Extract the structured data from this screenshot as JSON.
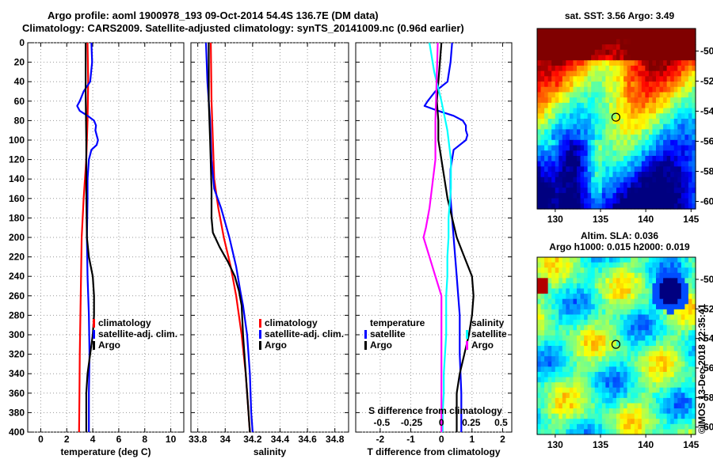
{
  "header": {
    "title_line1": "Argo profile: aoml 1900978_193 09-Oct-2014 54.4S 136.7E (DM data)",
    "title_line2": "Climatology: CARS2009. Satellite-adjusted climatology: synTS_20141009.nc (0.96d earlier)"
  },
  "colors": {
    "climatology": "#ff0000",
    "satellite": "#0000ff",
    "argo": "#000000",
    "t_sat": "#0000ff",
    "s_sat": "#00ffff",
    "s_argo": "#ff00ff"
  },
  "chart_data": [
    {
      "id": "temperature",
      "type": "line",
      "xlabel": "temperature (deg C)",
      "xlim": [
        -1,
        11
      ],
      "xticks": [
        "0",
        "2",
        "4",
        "6",
        "8",
        "10"
      ],
      "ylim": [
        400,
        0
      ],
      "yticks": [
        "0",
        "20",
        "40",
        "60",
        "80",
        "100",
        "120",
        "140",
        "160",
        "180",
        "200",
        "220",
        "240",
        "260",
        "280",
        "300",
        "320",
        "340",
        "360",
        "380",
        "400"
      ],
      "grid": true,
      "legend": [
        "climatology",
        "satellite-adj. clim.",
        "Argo"
      ],
      "series": [
        {
          "name": "climatology",
          "depth": [
            0,
            40,
            80,
            120,
            160,
            200,
            240,
            280,
            320,
            360,
            400
          ],
          "values": [
            3.6,
            3.65,
            3.6,
            3.5,
            3.3,
            3.15,
            3.1,
            3.05,
            3.0,
            2.98,
            2.95
          ]
        },
        {
          "name": "satellite-adj. clim.",
          "depth": [
            0,
            20,
            40,
            50,
            60,
            65,
            70,
            75,
            80,
            85,
            90,
            95,
            100,
            105,
            110,
            120,
            140,
            160,
            200,
            240,
            280,
            320,
            360,
            400
          ],
          "values": [
            3.9,
            3.95,
            3.8,
            3.3,
            3.0,
            2.8,
            3.0,
            3.6,
            4.1,
            4.25,
            4.2,
            4.3,
            4.4,
            4.3,
            3.9,
            3.7,
            3.6,
            3.6,
            3.55,
            3.6,
            3.7,
            3.75,
            3.7,
            3.7
          ]
        },
        {
          "name": "Argo",
          "depth": [
            0,
            50,
            100,
            150,
            200,
            220,
            240,
            260,
            280,
            300,
            320,
            340,
            360,
            380,
            400
          ],
          "values": [
            3.45,
            3.45,
            3.5,
            3.5,
            3.55,
            3.7,
            4.0,
            4.1,
            4.1,
            4.0,
            3.8,
            3.6,
            3.5,
            3.5,
            3.5
          ]
        }
      ]
    },
    {
      "id": "salinity",
      "type": "line",
      "xlabel": "salinity",
      "xlim": [
        33.75,
        34.9
      ],
      "xticks": [
        "33.8",
        "34",
        "34.2",
        "34.4",
        "34.6",
        "34.8"
      ],
      "ylim": [
        400,
        0
      ],
      "grid": true,
      "legend": [
        "climatology",
        "satellite-adj. clim.",
        "Argo"
      ],
      "series": [
        {
          "name": "climatology",
          "depth": [
            0,
            60,
            100,
            140,
            150,
            170,
            200,
            230,
            260,
            300,
            340,
            380,
            400
          ],
          "values": [
            33.895,
            33.9,
            33.91,
            33.92,
            33.93,
            33.95,
            33.99,
            34.04,
            34.08,
            34.12,
            34.15,
            34.17,
            34.18
          ]
        },
        {
          "name": "satellite-adj. clim.",
          "depth": [
            0,
            40,
            80,
            120,
            150,
            170,
            200,
            230,
            255,
            270,
            300,
            340,
            380,
            400
          ],
          "values": [
            33.86,
            33.87,
            33.89,
            33.9,
            33.92,
            33.97,
            34.03,
            34.08,
            34.11,
            34.13,
            34.16,
            34.18,
            34.19,
            34.2
          ]
        },
        {
          "name": "Argo",
          "depth": [
            0,
            60,
            100,
            150,
            180,
            195,
            210,
            225,
            240,
            255,
            270,
            300,
            340,
            380,
            400
          ],
          "values": [
            33.88,
            33.88,
            33.89,
            33.9,
            33.9,
            33.91,
            33.96,
            34.02,
            34.07,
            34.1,
            34.12,
            34.13,
            34.15,
            34.17,
            34.18
          ]
        }
      ]
    },
    {
      "id": "differences",
      "type": "line",
      "xlabel": "T difference from climatology",
      "xlabel_top": "S difference from climatology",
      "xlim": [
        -2.8,
        2.3
      ],
      "xticks": [
        "-2",
        "-1",
        "0",
        "1",
        "2"
      ],
      "xticks_top": [
        "-0.5",
        "-0.25",
        "0",
        "0.25",
        "0.5"
      ],
      "ylim": [
        400,
        0
      ],
      "grid": true,
      "legend_temperature_title": "temperature",
      "legend_salinity_title": "salinity",
      "legend_temperature": [
        "satellite",
        "Argo"
      ],
      "legend_salinity": [
        "satellite",
        "Argo"
      ],
      "series": [
        {
          "name": "T satellite",
          "depth": [
            0,
            20,
            40,
            50,
            60,
            65,
            70,
            75,
            80,
            85,
            90,
            95,
            100,
            110,
            130,
            160,
            200,
            240,
            280,
            320,
            360,
            400
          ],
          "values": [
            0.35,
            0.3,
            0.2,
            -0.2,
            -0.45,
            -0.55,
            -0.1,
            0.4,
            0.7,
            0.8,
            0.8,
            0.85,
            0.8,
            0.4,
            0.3,
            0.3,
            0.4,
            0.5,
            0.6,
            0.6,
            0.65,
            0.65
          ]
        },
        {
          "name": "T Argo",
          "depth": [
            0,
            60,
            80,
            100,
            120,
            160,
            200,
            220,
            240,
            260,
            280,
            300,
            320,
            340,
            360,
            380,
            400
          ],
          "values": [
            0.0,
            -0.15,
            -0.1,
            -0.1,
            0.0,
            0.2,
            0.5,
            0.75,
            1.0,
            1.05,
            1.0,
            0.9,
            0.75,
            0.6,
            0.5,
            0.5,
            0.5
          ]
        },
        {
          "name": "S satellite",
          "depth": [
            0,
            30,
            60,
            90,
            120,
            150,
            180,
            200,
            220,
            240,
            260,
            280,
            300,
            320,
            340,
            360,
            380,
            400
          ],
          "values": [
            -0.1,
            -0.06,
            0.0,
            0.05,
            0.08,
            0.08,
            0.06,
            0.06,
            0.05,
            0.05,
            0.04,
            0.04,
            0.04,
            0.03,
            0.02,
            0.02,
            0.01,
            0.01
          ]
        },
        {
          "name": "S Argo",
          "depth": [
            0,
            40,
            80,
            120,
            150,
            170,
            190,
            200,
            220,
            240,
            260,
            280,
            300,
            320,
            340,
            360,
            380,
            400
          ],
          "values": [
            -0.03,
            -0.04,
            -0.05,
            -0.05,
            -0.08,
            -0.1,
            -0.13,
            -0.15,
            -0.1,
            -0.05,
            0.0,
            0.0,
            0.0,
            0.0,
            0.0,
            0.0,
            0.0,
            0.0
          ]
        }
      ]
    },
    {
      "id": "sst_map",
      "type": "heatmap",
      "title": "sat. SST: 3.56 Argo: 3.49",
      "xlim": [
        128,
        145.5
      ],
      "ylim": [
        -60.5,
        -48.5
      ],
      "xticks": [
        "130",
        "135",
        "140",
        "145"
      ],
      "yticks": [
        "-50",
        "-52",
        "-54",
        "-56",
        "-58",
        "-60"
      ],
      "marker": {
        "lon": 136.7,
        "lat": -54.4
      }
    },
    {
      "id": "sla_map",
      "type": "heatmap",
      "title_line1": "Altim. SLA: 0.036",
      "title_line2": "Argo h1000: 0.015 h2000: 0.019",
      "xlim": [
        128,
        145.5
      ],
      "ylim": [
        -60.5,
        -48.5
      ],
      "xticks": [
        "130",
        "135",
        "140",
        "145"
      ],
      "yticks": [
        "-50",
        "-52",
        "-54",
        "-56",
        "-58",
        "-60"
      ],
      "marker": {
        "lon": 136.7,
        "lat": -54.4
      }
    }
  ],
  "footer": {
    "stamp": "©IMOS 13-Dec-2018 22:35:41"
  }
}
